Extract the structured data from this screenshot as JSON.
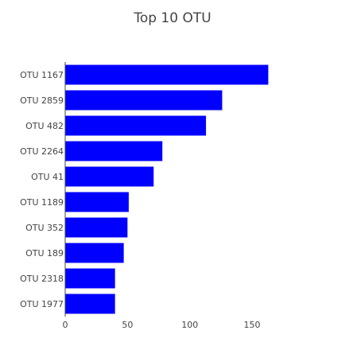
{
  "chart_data": {
    "type": "bar",
    "orientation": "horizontal",
    "title": "Top 10 OTU",
    "xlabel": "",
    "ylabel": "",
    "categories": [
      "OTU 1167",
      "OTU 2859",
      "OTU 482",
      "OTU 2264",
      "OTU 41",
      "OTU 1189",
      "OTU 352",
      "OTU 189",
      "OTU 2318",
      "OTU 1977"
    ],
    "values": [
      163,
      126,
      113,
      78,
      71,
      51,
      50,
      47,
      40,
      40
    ],
    "xlim": [
      0,
      164
    ],
    "xticks": [
      0,
      50,
      100,
      150
    ],
    "bar_color": "#0000ff",
    "grid": false,
    "legend": "none"
  }
}
